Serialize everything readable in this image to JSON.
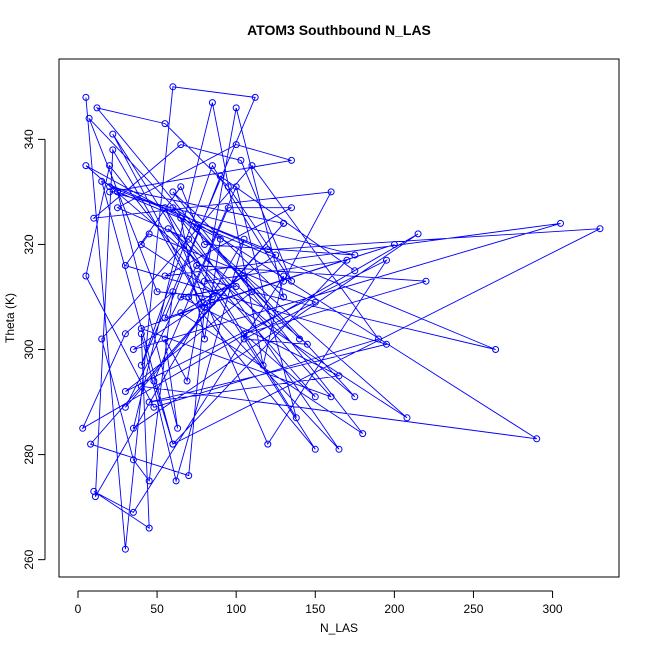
{
  "chart_data": {
    "type": "line",
    "title": "ATOM3 Southbound N_LAS",
    "xlabel": "N_LAS",
    "ylabel": "Theta (K)",
    "xlim": [
      -12,
      342
    ],
    "ylim": [
      256.7,
      355.3
    ],
    "xticks": [
      0,
      50,
      100,
      150,
      200,
      250,
      300
    ],
    "yticks": [
      260,
      280,
      300,
      320,
      340
    ],
    "grid": false,
    "markers": "open-circle",
    "series_color": "#0000ff",
    "series": [
      {
        "points": [
          [
            5,
            348
          ],
          [
            30,
            262
          ],
          [
            60,
            350
          ],
          [
            112,
            348
          ],
          [
            40,
            297
          ],
          [
            85,
            335
          ],
          [
            130,
            313
          ],
          [
            160,
            330
          ],
          [
            10,
            325
          ],
          [
            65,
            339
          ],
          [
            103,
            336
          ],
          [
            135,
            313
          ],
          [
            95,
            331
          ],
          [
            55,
            343
          ],
          [
            12,
            346
          ],
          [
            75,
            323
          ],
          [
            140,
            302
          ],
          [
            7,
            344
          ],
          [
            50,
            311
          ],
          [
            85,
            310
          ],
          [
            20,
            335
          ],
          [
            5,
            314
          ],
          [
            48,
            289
          ],
          [
            190,
            302
          ],
          [
            110,
            335
          ],
          [
            15,
            302
          ],
          [
            35,
            279
          ],
          [
            45,
            275
          ],
          [
            60,
            311
          ],
          [
            30,
            303
          ],
          [
            3,
            285
          ],
          [
            215,
            322
          ],
          [
            35,
            285
          ],
          [
            85,
            347
          ],
          [
            117,
            297
          ],
          [
            130,
            314
          ],
          [
            35,
            269
          ],
          [
            10,
            273
          ],
          [
            45,
            266
          ],
          [
            40,
            303
          ],
          [
            62,
            275
          ],
          [
            105,
            321
          ],
          [
            11,
            272
          ],
          [
            22,
            338
          ],
          [
            78,
            309
          ],
          [
            165,
            281
          ],
          [
            60,
            327
          ],
          [
            290,
            283
          ],
          [
            40,
            293
          ],
          [
            130,
            324
          ],
          [
            8,
            282
          ],
          [
            70,
            276
          ],
          [
            80,
            308
          ],
          [
            22,
            341
          ],
          [
            150,
            281
          ],
          [
            70,
            310
          ],
          [
            100,
            331
          ],
          [
            138,
            287
          ],
          [
            55,
            327
          ],
          [
            120,
            282
          ],
          [
            195,
            317
          ],
          [
            30,
            292
          ],
          [
            110,
            311
          ],
          [
            264,
            300
          ],
          [
            25,
            330
          ],
          [
            63,
            285
          ],
          [
            55,
            302
          ],
          [
            69,
            294
          ],
          [
            100,
            346
          ],
          [
            130,
            310
          ],
          [
            60,
            330
          ],
          [
            180,
            284
          ],
          [
            65,
            307
          ],
          [
            105,
            314
          ],
          [
            175,
            291
          ],
          [
            5,
            335
          ],
          [
            90,
            321
          ],
          [
            80,
            302
          ],
          [
            65,
            325
          ],
          [
            208,
            287
          ],
          [
            40,
            320
          ],
          [
            45,
            322
          ],
          [
            150,
            309
          ],
          [
            105,
            302
          ],
          [
            145,
            301
          ],
          [
            57,
            323
          ],
          [
            150,
            291
          ],
          [
            105,
            303
          ],
          [
            220,
            313
          ],
          [
            75,
            316
          ],
          [
            30,
            289
          ],
          [
            130,
            324
          ],
          [
            20,
            331
          ],
          [
            120,
            319
          ],
          [
            330,
            323
          ],
          [
            60,
            282
          ],
          [
            48,
            294
          ],
          [
            95,
            327
          ],
          [
            135,
            327
          ],
          [
            55,
            314
          ],
          [
            305,
            324
          ],
          [
            35,
            300
          ],
          [
            125,
            318
          ],
          [
            15,
            332
          ],
          [
            60,
            282
          ],
          [
            170,
            317
          ],
          [
            80,
            313
          ],
          [
            100,
            312
          ],
          [
            65,
            310
          ],
          [
            165,
            295
          ],
          [
            45,
            290
          ],
          [
            195,
            301
          ],
          [
            30,
            316
          ],
          [
            65,
            331
          ],
          [
            80,
            320
          ],
          [
            175,
            318
          ],
          [
            20,
            330
          ],
          [
            135,
            336
          ],
          [
            100,
            339
          ],
          [
            25,
            327
          ],
          [
            70,
            321
          ],
          [
            160,
            291
          ],
          [
            40,
            304
          ],
          [
            85,
            309
          ],
          [
            200,
            320
          ],
          [
            55,
            306
          ],
          [
            90,
            333
          ],
          [
            175,
            315
          ]
        ]
      }
    ]
  }
}
